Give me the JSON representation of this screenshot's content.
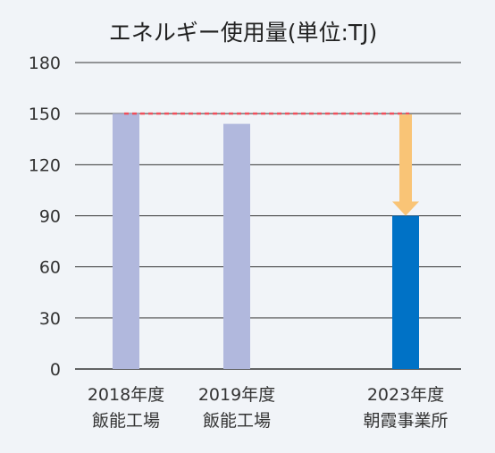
{
  "chart_data": {
    "type": "bar",
    "title": "エネルギー使用量(単位:TJ)",
    "categories": [
      [
        "2018年度",
        "飯能工場"
      ],
      [
        "2019年度",
        "飯能工場"
      ],
      [
        "2023年度",
        "朝霞事業所"
      ]
    ],
    "values": [
      150,
      144,
      90
    ],
    "ylim": [
      0,
      180
    ],
    "yticks": [
      0,
      30,
      60,
      90,
      120,
      150,
      180
    ],
    "grid": true,
    "reference_line": 150,
    "colors": {
      "past_bar": "#b1b8dd",
      "current_bar": "#0072c6",
      "reference_line": "#ef4f5b",
      "arrow": "#f9c476",
      "grid": "#333333"
    }
  }
}
